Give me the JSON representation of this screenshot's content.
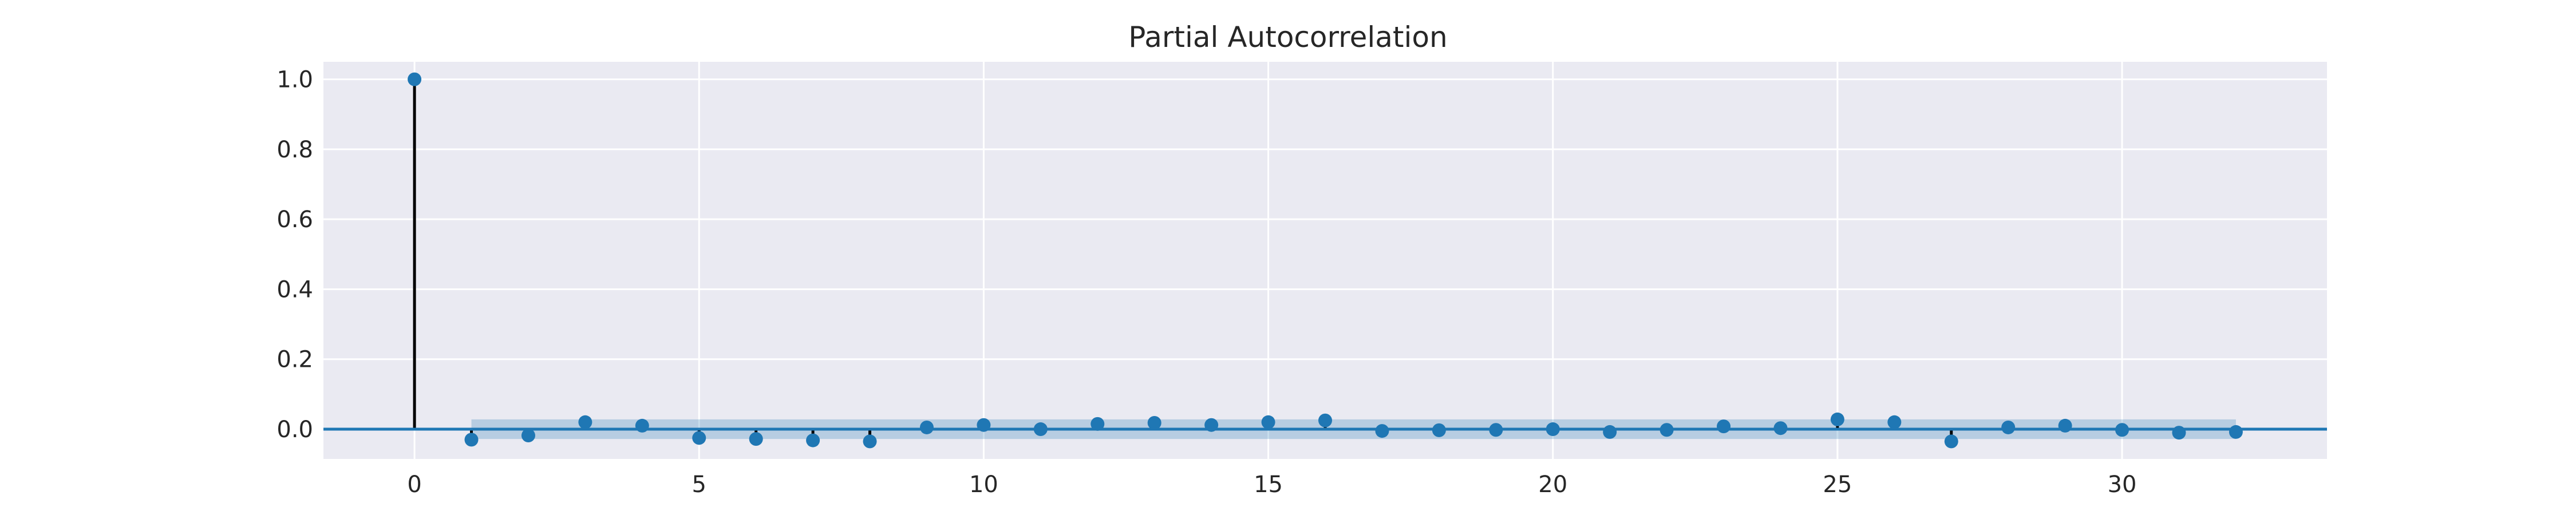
{
  "chart_data": {
    "type": "stem",
    "title": "Partial Autocorrelation",
    "xlabel": "",
    "ylabel": "",
    "xlim": [
      -1.6,
      33.6
    ],
    "ylim": [
      -0.085,
      1.05
    ],
    "xticks": [
      0,
      5,
      10,
      15,
      20,
      25,
      30
    ],
    "yticks": [
      0.0,
      0.2,
      0.4,
      0.6,
      0.8,
      1.0
    ],
    "ytick_labels": [
      "0.0",
      "0.2",
      "0.4",
      "0.6",
      "0.8",
      "1.0"
    ],
    "grid": true,
    "confidence_band": {
      "x_range": [
        1,
        32
      ],
      "lower": -0.028,
      "upper": 0.028
    },
    "lags": [
      0,
      1,
      2,
      3,
      4,
      5,
      6,
      7,
      8,
      9,
      10,
      11,
      12,
      13,
      14,
      15,
      16,
      17,
      18,
      19,
      20,
      21,
      22,
      23,
      24,
      25,
      26,
      27,
      28,
      29,
      30,
      31,
      32
    ],
    "values": [
      1.0,
      -0.03,
      -0.018,
      0.02,
      0.01,
      -0.025,
      -0.028,
      -0.032,
      -0.035,
      0.005,
      0.012,
      0.0,
      0.015,
      0.018,
      0.012,
      0.02,
      0.025,
      -0.005,
      -0.003,
      -0.002,
      0.0,
      -0.008,
      -0.002,
      0.008,
      0.003,
      0.028,
      0.02,
      -0.035,
      0.005,
      0.01,
      -0.002,
      -0.01,
      -0.008
    ]
  },
  "colors": {
    "background": "#eaeaf2",
    "grid": "#ffffff",
    "marker": "#1f77b4",
    "stem": "#000000",
    "zero_line": "#1f77b4",
    "band": "#1f77b4"
  }
}
